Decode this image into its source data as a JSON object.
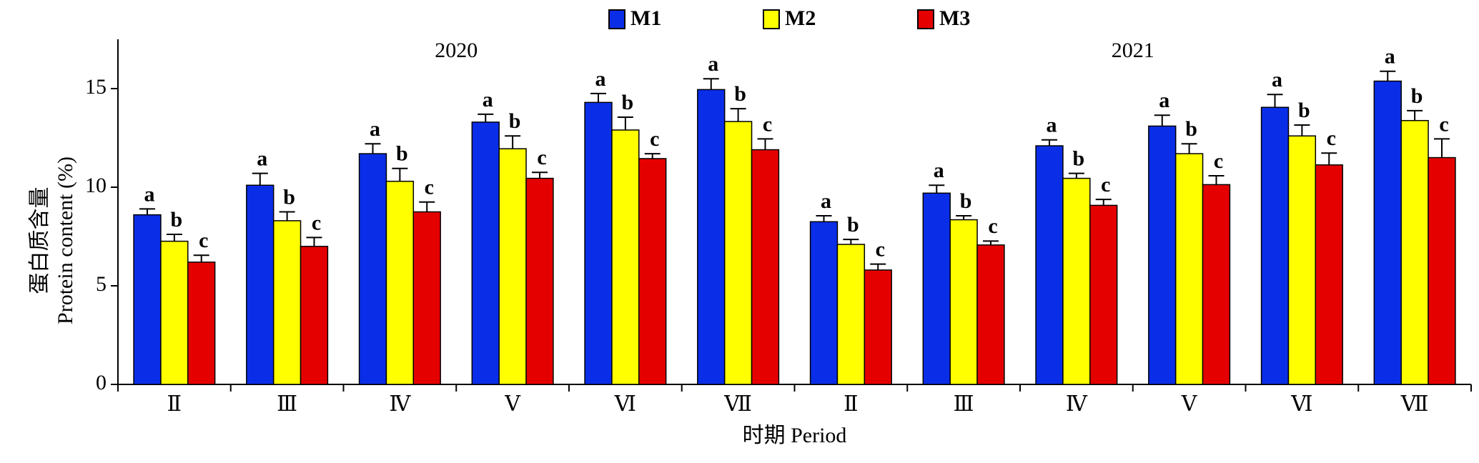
{
  "chart_data": {
    "type": "bar",
    "y_label_lines": [
      "蛋白质含量",
      "Protein content (%)"
    ],
    "x_label": "时期 Period",
    "groups": [
      {
        "label": "2020",
        "start": 0,
        "end": 5
      },
      {
        "label": "2021",
        "start": 6,
        "end": 11
      }
    ],
    "categories": [
      "Ⅱ",
      "Ⅲ",
      "Ⅳ",
      "Ⅴ",
      "Ⅵ",
      "Ⅶ",
      "Ⅱ",
      "Ⅲ",
      "Ⅳ",
      "Ⅴ",
      "Ⅵ",
      "Ⅶ"
    ],
    "series": [
      {
        "name": "M1",
        "color": "#0a2ee8",
        "values": [
          8.6,
          10.1,
          11.7,
          13.3,
          14.3,
          14.95,
          8.25,
          9.7,
          12.1,
          13.1,
          14.05,
          15.38
        ],
        "errors": [
          0.3,
          0.6,
          0.5,
          0.4,
          0.45,
          0.55,
          0.3,
          0.4,
          0.3,
          0.55,
          0.65,
          0.5
        ],
        "labels": [
          "a",
          "a",
          "a",
          "a",
          "a",
          "a",
          "a",
          "a",
          "a",
          "a",
          "a",
          "a"
        ]
      },
      {
        "name": "M2",
        "color": "#ffff00",
        "values": [
          7.26,
          8.3,
          10.3,
          11.95,
          12.9,
          13.33,
          7.1,
          8.35,
          10.45,
          11.7,
          12.6,
          13.38
        ],
        "errors": [
          0.35,
          0.45,
          0.65,
          0.65,
          0.65,
          0.65,
          0.25,
          0.2,
          0.25,
          0.5,
          0.55,
          0.5
        ],
        "labels": [
          "b",
          "b",
          "b",
          "b",
          "b",
          "b",
          "b",
          "b",
          "b",
          "b",
          "b",
          "b"
        ]
      },
      {
        "name": "M3",
        "color": "#e50000",
        "values": [
          6.2,
          7.0,
          8.75,
          10.45,
          11.45,
          11.9,
          5.8,
          7.07,
          9.08,
          10.13,
          11.13,
          11.5
        ],
        "errors": [
          0.35,
          0.45,
          0.5,
          0.3,
          0.25,
          0.55,
          0.3,
          0.2,
          0.3,
          0.45,
          0.6,
          0.95
        ],
        "labels": [
          "c",
          "c",
          "c",
          "c",
          "c",
          "c",
          "c",
          "c",
          "c",
          "c",
          "c",
          "c"
        ]
      }
    ],
    "ylim": [
      0,
      17.5
    ],
    "yticks": [
      0,
      5,
      10,
      15
    ]
  }
}
